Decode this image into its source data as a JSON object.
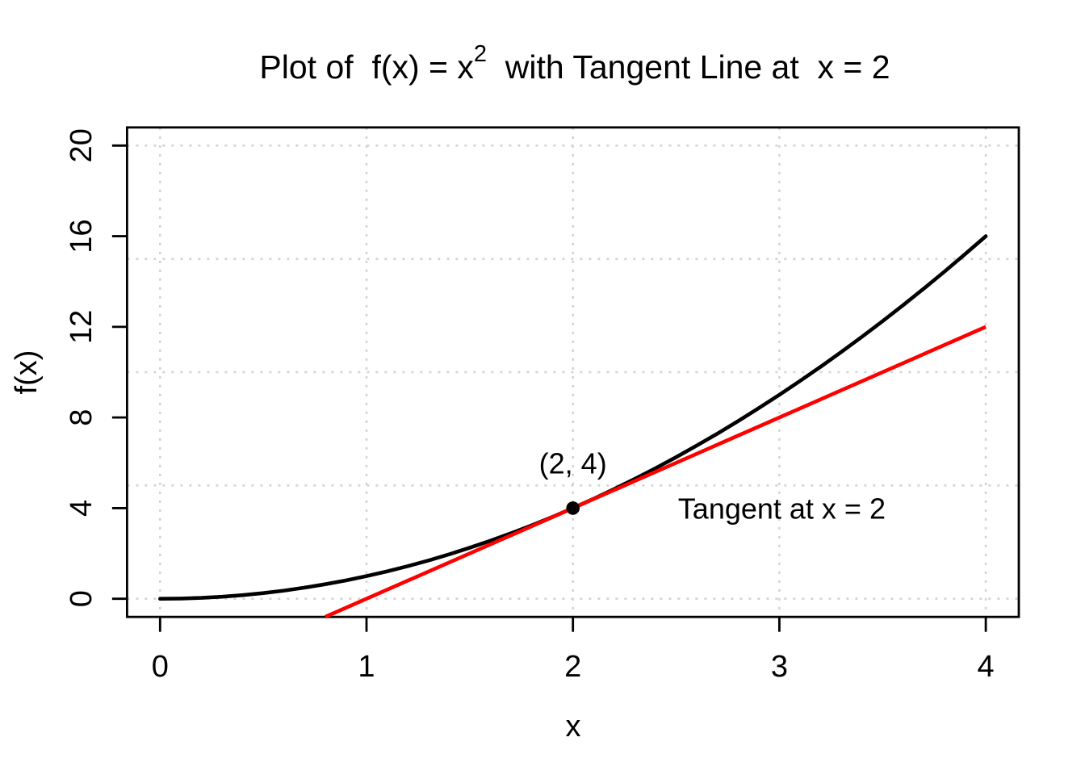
{
  "title": {
    "pre": "Plot of  f(x) = x",
    "sup": "2",
    "post": "  with Tangent Line at  x = 2"
  },
  "axes": {
    "x": {
      "label": "x",
      "ticks": [
        0,
        1,
        2,
        3,
        4
      ]
    },
    "y": {
      "label": "f(x)",
      "ticks": [
        0,
        4,
        8,
        12,
        16,
        20
      ]
    }
  },
  "colors": {
    "curve": "#000000",
    "tangent": "#FF0000",
    "grid": "#D3D3D3",
    "background": "#FFFFFF",
    "point": "#000000"
  },
  "chart_data": {
    "type": "line",
    "title": "Plot of f(x) = x^2 with Tangent Line at x = 2",
    "xlabel": "x",
    "ylabel": "f(x)",
    "xlim": [
      -0.16,
      4.16
    ],
    "ylim": [
      -0.8,
      20.8
    ],
    "x_ticks": [
      0,
      1,
      2,
      3,
      4
    ],
    "y_ticks": [
      0,
      4,
      8,
      12,
      16,
      20
    ],
    "grid": {
      "style": "dotted",
      "x_values": [
        0,
        1,
        2,
        3,
        4
      ],
      "y_values": [
        0,
        5,
        10,
        15,
        20
      ]
    },
    "series": [
      {
        "name": "f(x) = x^2",
        "color": "#000000",
        "points": [
          [
            0,
            0
          ],
          [
            0.1,
            0.01
          ],
          [
            0.2,
            0.04
          ],
          [
            0.3,
            0.09
          ],
          [
            0.4,
            0.16
          ],
          [
            0.5,
            0.25
          ],
          [
            0.6,
            0.36
          ],
          [
            0.7,
            0.49
          ],
          [
            0.8,
            0.64
          ],
          [
            0.9,
            0.81
          ],
          [
            1,
            1
          ],
          [
            1.1,
            1.21
          ],
          [
            1.2,
            1.44
          ],
          [
            1.3,
            1.69
          ],
          [
            1.4,
            1.96
          ],
          [
            1.5,
            2.25
          ],
          [
            1.6,
            2.56
          ],
          [
            1.7,
            2.89
          ],
          [
            1.8,
            3.24
          ],
          [
            1.9,
            3.61
          ],
          [
            2,
            4
          ],
          [
            2.1,
            4.41
          ],
          [
            2.2,
            4.84
          ],
          [
            2.3,
            5.29
          ],
          [
            2.4,
            5.76
          ],
          [
            2.5,
            6.25
          ],
          [
            2.6,
            6.76
          ],
          [
            2.7,
            7.29
          ],
          [
            2.8,
            7.84
          ],
          [
            2.9,
            8.41
          ],
          [
            3,
            9
          ],
          [
            3.1,
            9.61
          ],
          [
            3.2,
            10.24
          ],
          [
            3.3,
            10.89
          ],
          [
            3.4,
            11.56
          ],
          [
            3.5,
            12.25
          ],
          [
            3.6,
            12.96
          ],
          [
            3.7,
            13.69
          ],
          [
            3.8,
            14.44
          ],
          [
            3.9,
            15.21
          ],
          [
            4,
            16
          ]
        ]
      },
      {
        "name": "Tangent at x = 2",
        "color": "#FF0000",
        "equation": "y = 4x - 4",
        "points": [
          [
            0.8,
            -0.8
          ],
          [
            4,
            12
          ]
        ]
      }
    ],
    "point": {
      "x": 2,
      "y": 4,
      "label": "(2, 4)"
    },
    "annotations": {
      "point_label": {
        "text": "(2, 4)",
        "x": 2,
        "y": 6
      },
      "tangent_label": {
        "text": "Tangent at x = 2",
        "x": 3,
        "y": 4
      }
    }
  }
}
